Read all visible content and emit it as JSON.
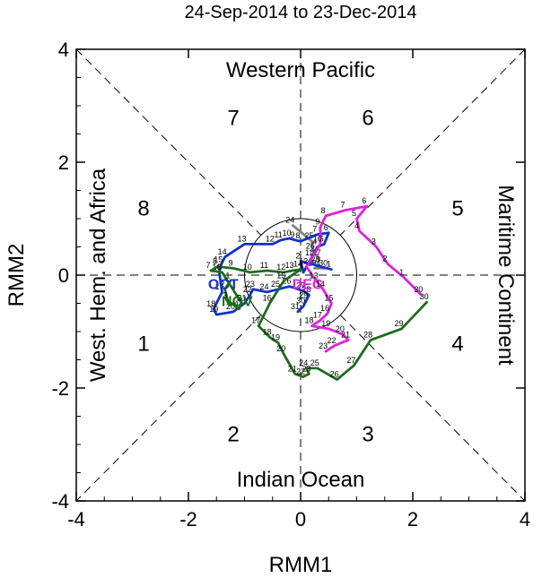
{
  "chart_data": {
    "type": "line",
    "title": "24-Sep-2014 to 23-Dec-2014",
    "xlabel": "RMM1",
    "ylabel": "RMM2",
    "xlim": [
      -4,
      4
    ],
    "ylim": [
      -4,
      4
    ],
    "xticks": [
      "-4",
      "-2",
      "0",
      "2",
      "4"
    ],
    "yticks": [
      "-4",
      "-2",
      "0",
      "2",
      "4"
    ],
    "xtick_values": [
      -4,
      -2,
      0,
      2,
      4
    ],
    "ytick_values": [
      -4,
      -2,
      0,
      2,
      4
    ],
    "regions": {
      "top": "Western Pacific",
      "bottom": "Indian Ocean",
      "left": "West. Hem. and Africa",
      "right": "Maritime Continent"
    },
    "phases": [
      {
        "label": "1",
        "x": -2.8,
        "y": -1.2
      },
      {
        "label": "2",
        "x": -1.2,
        "y": -2.8
      },
      {
        "label": "3",
        "x": 1.2,
        "y": -2.8
      },
      {
        "label": "4",
        "x": 2.8,
        "y": -1.2
      },
      {
        "label": "5",
        "x": 2.8,
        "y": 1.2
      },
      {
        "label": "6",
        "x": 1.2,
        "y": 2.8
      },
      {
        "label": "7",
        "x": -1.2,
        "y": 2.8
      },
      {
        "label": "8",
        "x": -2.8,
        "y": 1.2
      }
    ],
    "series": [
      {
        "name": "Sep",
        "color": "#808080",
        "points": [
          {
            "x": -0.14,
            "y": 0.88,
            "d": "24"
          },
          {
            "x": 0.2,
            "y": 0.6,
            "d": "25"
          },
          {
            "x": 0.22,
            "y": 0.42,
            "d": "26"
          },
          {
            "x": 0.33,
            "y": 0.3,
            "d": "27"
          },
          {
            "x": 0.31,
            "y": 0.18,
            "d": "28"
          },
          {
            "x": 0.25,
            "y": 0.12,
            "d": "29"
          },
          {
            "x": 0.45,
            "y": 0.12,
            "d": "30"
          }
        ]
      },
      {
        "name": "Oct",
        "color": "#1030d0",
        "label": "OCT",
        "label_pos": {
          "x": -1.38,
          "y": -0.15
        },
        "points": [
          {
            "x": 0.55,
            "y": 0.1,
            "d": "1"
          },
          {
            "x": 0.0,
            "y": 0.25,
            "d": "2"
          },
          {
            "x": 0.05,
            "y": 0.05,
            "d": "3"
          },
          {
            "x": 0.3,
            "y": 0.5,
            "d": "4"
          },
          {
            "x": 0.42,
            "y": 0.55,
            "d": "5"
          },
          {
            "x": 0.5,
            "y": 0.75,
            "d": "6"
          },
          {
            "x": 0.3,
            "y": 0.72,
            "d": "7"
          },
          {
            "x": 0.0,
            "y": 0.6,
            "d": "8"
          },
          {
            "x": -0.1,
            "y": 0.62,
            "d": "9"
          },
          {
            "x": -0.2,
            "y": 0.65,
            "d": "10"
          },
          {
            "x": -0.35,
            "y": 0.62,
            "d": "11"
          },
          {
            "x": -0.5,
            "y": 0.55,
            "d": "12"
          },
          {
            "x": -1.0,
            "y": 0.55,
            "d": "13"
          },
          {
            "x": -1.35,
            "y": 0.32,
            "d": "14"
          },
          {
            "x": -1.42,
            "y": 0.18,
            "d": "15"
          },
          {
            "x": -1.45,
            "y": 0.05,
            "d": "16"
          },
          {
            "x": -1.4,
            "y": -0.3,
            "d": "17"
          },
          {
            "x": -1.55,
            "y": -0.6,
            "d": "18"
          },
          {
            "x": -1.5,
            "y": -0.7,
            "d": "19"
          },
          {
            "x": -1.2,
            "y": -0.65,
            "d": "20"
          },
          {
            "x": -1.0,
            "y": -0.5,
            "d": "21"
          },
          {
            "x": -0.9,
            "y": -0.35,
            "d": "22"
          },
          {
            "x": -0.85,
            "y": -0.25,
            "d": "23"
          },
          {
            "x": -0.6,
            "y": -0.3,
            "d": "24"
          },
          {
            "x": -0.4,
            "y": -0.25,
            "d": "25"
          },
          {
            "x": -0.2,
            "y": -0.2,
            "d": "26"
          },
          {
            "x": 0.05,
            "y": -0.28,
            "d": "27"
          },
          {
            "x": 0.15,
            "y": -0.35,
            "d": "28"
          },
          {
            "x": 0.1,
            "y": -0.45,
            "d": "29"
          },
          {
            "x": 0.05,
            "y": -0.55,
            "d": "30"
          },
          {
            "x": -0.05,
            "y": -0.65,
            "d": "31"
          }
        ]
      },
      {
        "name": "Nov",
        "color": "#1a6e1a",
        "label": "NOV",
        "label_pos": {
          "x": -1.13,
          "y": -0.45
        },
        "points": [
          {
            "x": -1.25,
            "y": -0.1,
            "d": "1"
          },
          {
            "x": -1.35,
            "y": -0.25,
            "d": "2"
          },
          {
            "x": -1.3,
            "y": -0.45,
            "d": "3"
          },
          {
            "x": -1.1,
            "y": -0.6,
            "d": "4"
          },
          {
            "x": -1.05,
            "y": -0.5,
            "d": "5"
          },
          {
            "x": -1.4,
            "y": 0.05,
            "d": "6"
          },
          {
            "x": -1.6,
            "y": 0.08,
            "d": "7"
          },
          {
            "x": -1.48,
            "y": 0.15,
            "d": "8"
          },
          {
            "x": -1.2,
            "y": 0.12,
            "d": "9"
          },
          {
            "x": -0.9,
            "y": 0.05,
            "d": "10"
          },
          {
            "x": -0.6,
            "y": 0.08,
            "d": "11"
          },
          {
            "x": -0.3,
            "y": 0.05,
            "d": "12"
          },
          {
            "x": -0.15,
            "y": 0.08,
            "d": "13"
          },
          {
            "x": 0.0,
            "y": 0.1,
            "d": "14"
          },
          {
            "x": -0.3,
            "y": -0.1,
            "d": "15"
          },
          {
            "x": -0.55,
            "y": -0.5,
            "d": "16"
          },
          {
            "x": -0.75,
            "y": -0.9,
            "d": "17"
          },
          {
            "x": -0.55,
            "y": -1.1,
            "d": "18"
          },
          {
            "x": -0.4,
            "y": -1.2,
            "d": "19"
          },
          {
            "x": -0.3,
            "y": -1.4,
            "d": "20"
          },
          {
            "x": -0.1,
            "y": -1.75,
            "d": "21"
          },
          {
            "x": 0.05,
            "y": -1.8,
            "d": "22"
          },
          {
            "x": 0.15,
            "y": -1.75,
            "d": "23"
          },
          {
            "x": 0.1,
            "y": -1.65,
            "d": "24"
          },
          {
            "x": 0.3,
            "y": -1.65,
            "d": "25"
          },
          {
            "x": 0.65,
            "y": -1.85,
            "d": "26"
          },
          {
            "x": 0.95,
            "y": -1.6,
            "d": "27"
          },
          {
            "x": 1.25,
            "y": -1.15,
            "d": "28"
          },
          {
            "x": 1.8,
            "y": -0.95,
            "d": "29"
          },
          {
            "x": 2.25,
            "y": -0.48,
            "d": "30"
          }
        ]
      },
      {
        "name": "Dec",
        "color": "#e020e0",
        "label": "DEC",
        "label_pos": {
          "x": 0.12,
          "y": -0.15
        },
        "points": [
          {
            "x": 2.15,
            "y": -0.35,
            "d": "30"
          },
          {
            "x": 1.85,
            "y": -0.05,
            "d": "1"
          },
          {
            "x": 1.55,
            "y": 0.2,
            "d": "2"
          },
          {
            "x": 1.35,
            "y": 0.5,
            "d": "3"
          },
          {
            "x": 1.05,
            "y": 0.78,
            "d": "4"
          },
          {
            "x": 1.0,
            "y": 1.0,
            "d": "5"
          },
          {
            "x": 1.18,
            "y": 1.22,
            "d": "6"
          },
          {
            "x": 0.8,
            "y": 1.15,
            "d": "7"
          },
          {
            "x": 0.45,
            "y": 1.05,
            "d": "8"
          },
          {
            "x": 0.35,
            "y": 0.85,
            "d": "9"
          },
          {
            "x": 0.35,
            "y": 0.55,
            "d": "10"
          },
          {
            "x": 0.2,
            "y": 0.3,
            "d": "11"
          },
          {
            "x": 0.1,
            "y": 0.15,
            "d": "12"
          },
          {
            "x": 0.28,
            "y": -0.1,
            "d": "13"
          },
          {
            "x": 0.4,
            "y": -0.25,
            "d": "14"
          },
          {
            "x": 0.55,
            "y": -0.5,
            "d": "15"
          },
          {
            "x": 0.48,
            "y": -0.68,
            "d": "16"
          },
          {
            "x": 0.35,
            "y": -0.8,
            "d": "17"
          },
          {
            "x": 0.2,
            "y": -0.9,
            "d": "18"
          },
          {
            "x": 0.5,
            "y": -0.95,
            "d": "19"
          },
          {
            "x": 0.75,
            "y": -1.05,
            "d": "20"
          },
          {
            "x": 0.85,
            "y": -1.15,
            "d": "21"
          },
          {
            "x": 0.6,
            "y": -1.25,
            "d": "22"
          },
          {
            "x": 0.45,
            "y": -1.35,
            "d": "23"
          }
        ]
      }
    ]
  }
}
